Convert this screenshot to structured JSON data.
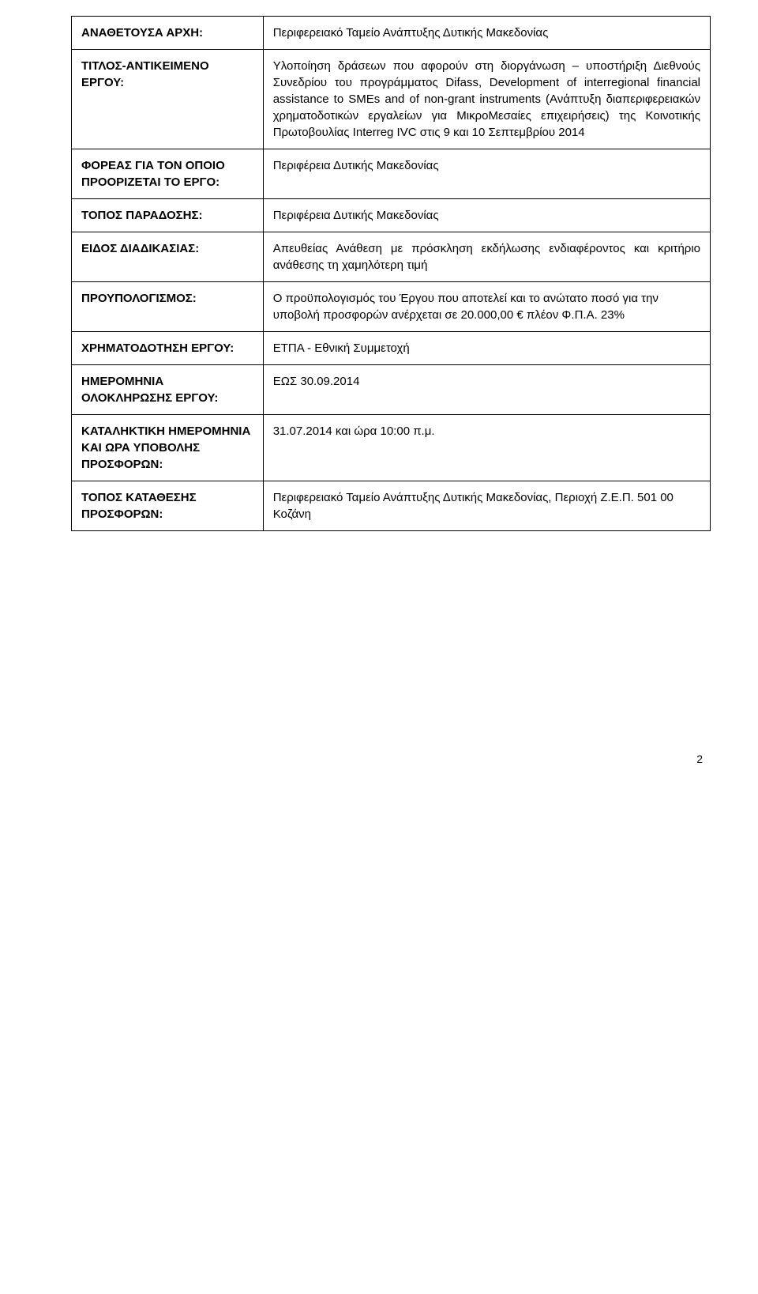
{
  "table": {
    "rows": [
      {
        "label": "ΑΝΑΘΕΤΟΥΣΑ ΑΡΧΗ:",
        "value": "Περιφερειακό Ταμείο Ανάπτυξης Δυτικής Μακεδονίας"
      },
      {
        "label": "ΤΙΤΛΟΣ-ΑΝΤΙΚΕΙΜΕΝΟ ΕΡΓΟΥ:",
        "value": "Υλοποίηση δράσεων που αφορούν στη διοργάνωση – υποστήριξη Διεθνούς Συνεδρίου του προγράμματος Difass, Development of interregional financial assistance to SMEs and of non-grant instruments (Ανάπτυξη διαπεριφερειακών χρηματοδοτικών εργαλείων για ΜικροΜεσαίες επιχειρήσεις) της Κοινοτικής Πρωτοβουλίας Interreg IVC στις 9 και 10 Σεπτεμβρίου 2014"
      },
      {
        "label": "ΦΟΡΕΑΣ ΓΙΑ ΤΟΝ ΟΠΟΙΟ ΠΡΟΟΡΙΖΕΤΑΙ ΤΟ ΕΡΓΟ:",
        "value": "Περιφέρεια Δυτικής Μακεδονίας"
      },
      {
        "label": "ΤΟΠΟΣ ΠΑΡΑΔΟΣΗΣ:",
        "value": "Περιφέρεια Δυτικής Μακεδονίας"
      },
      {
        "label": "ΕΙΔΟΣ ΔΙΑΔΙΚΑΣΙΑΣ:",
        "value": "Απευθείας Ανάθεση με πρόσκληση εκδήλωσης ενδιαφέροντος και κριτήριο ανάθεσης τη χαμηλότερη τιμή"
      },
      {
        "label": "ΠΡΟΥΠΟΛΟΓΙΣΜΟΣ:",
        "value": "Ο προϋπολογισμός του Έργου που αποτελεί και το ανώτατο ποσό για την υποβολή προσφορών ανέρχεται σε 20.000,00 € πλέον Φ.Π.Α. 23%"
      },
      {
        "label": "ΧΡΗΜΑΤΟΔΟΤΗΣΗ ΕΡΓΟΥ:",
        "value": "ΕΤΠΑ - Εθνική Συμμετοχή"
      },
      {
        "label": "ΗΜΕΡΟΜΗΝΙΑ ΟΛΟΚΛΗΡΩΣΗΣ ΕΡΓΟΥ:",
        "value": "ΕΩΣ 30.09.2014"
      },
      {
        "label": "ΚΑΤΑΛΗΚΤΙΚΗ ΗΜΕΡΟΜΗΝΙΑ ΚΑΙ ΩΡΑ ΥΠΟΒΟΛΗΣ ΠΡΟΣΦΟΡΩΝ:",
        "value": "31.07.2014 και ώρα 10:00 π.μ."
      },
      {
        "label": "ΤΟΠΟΣ ΚΑΤΑΘΕΣΗΣ ΠΡΟΣΦΟΡΩΝ:",
        "value": "Περιφερειακό Ταμείο Ανάπτυξης Δυτικής Μακεδονίας, Περιοχή Ζ.Ε.Π. 501 00 Κοζάνη"
      }
    ]
  },
  "page_number": "2",
  "styling": {
    "body_background": "#ffffff",
    "border_color": "#000000",
    "font_family": "Arial",
    "cell_font_size": 15,
    "page_number_font_size": 14,
    "label_column_width_percent": 30,
    "value_column_width_percent": 70
  }
}
